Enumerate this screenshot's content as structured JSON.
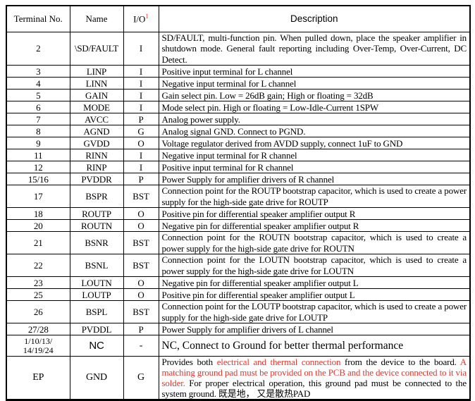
{
  "colors": {
    "red": "#e8352b",
    "ink": "#000000",
    "background": "#ffffff"
  },
  "table": {
    "header": {
      "terminal": "Terminal No.",
      "name": "Name",
      "io": "I/O",
      "io_sup": "1",
      "description": "Description"
    },
    "rows": [
      {
        "terminal": [
          "2"
        ],
        "name": "\\SD/FAULT",
        "io": "I",
        "tall": true,
        "justify": true,
        "desc": [
          {
            "t": "SD/FAULT, multi-function pin. When pulled down, place the speaker amplifier in shutdown mode. General fault reporting including Over-Temp, Over-Current, DC Detect.",
            "red": false
          }
        ]
      },
      {
        "terminal": [
          "3"
        ],
        "name": "LINP",
        "io": "I",
        "desc": [
          {
            "t": "Positive input terminal for L channel",
            "red": false
          }
        ]
      },
      {
        "terminal": [
          "4"
        ],
        "name": "LINN",
        "io": "I",
        "desc": [
          {
            "t": "Negative input terminal for L channel",
            "red": false
          }
        ]
      },
      {
        "terminal": [
          "5"
        ],
        "name": "GAIN",
        "io": "I",
        "desc": [
          {
            "t": "Gain select pin. Low = 26dB gain; High or floating = 32dB",
            "red": false
          }
        ]
      },
      {
        "terminal": [
          "6"
        ],
        "name": "MODE",
        "io": "I",
        "desc": [
          {
            "t": "Mode select pin. High or floating = Low-Idle-Current 1SPW",
            "red": false
          }
        ]
      },
      {
        "terminal": [
          "7"
        ],
        "name": "AVCC",
        "io": "P",
        "desc": [
          {
            "t": "Analog power supply.",
            "red": false
          }
        ]
      },
      {
        "terminal": [
          "8"
        ],
        "name": "AGND",
        "io": "G",
        "desc": [
          {
            "t": "Analog signal GND. Connect to PGND.",
            "red": false
          }
        ]
      },
      {
        "terminal": [
          "9"
        ],
        "name": "GVDD",
        "io": "O",
        "desc": [
          {
            "t": "Voltage regulator derived from AVDD supply, connect 1uF to GND",
            "red": false
          }
        ]
      },
      {
        "terminal": [
          "11"
        ],
        "name": "RINN",
        "io": "I",
        "desc": [
          {
            "t": "Negative input terminal for R channel",
            "red": false
          }
        ]
      },
      {
        "terminal": [
          "12"
        ],
        "name": "RINP",
        "io": "I",
        "desc": [
          {
            "t": "Positive input terminal for R channel",
            "red": false
          }
        ]
      },
      {
        "terminal": [
          "15/16"
        ],
        "name": "PVDDR",
        "io": "P",
        "desc": [
          {
            "t": "Power Supply for amplifier drivers of R channel",
            "red": false
          }
        ]
      },
      {
        "terminal": [
          "17"
        ],
        "name": "BSPR",
        "io": "BST",
        "tall": true,
        "justify": true,
        "desc": [
          {
            "t": "Connection point for the ROUTP bootstrap capacitor, which is used to create a power supply for the high-side gate drive for ROUTP",
            "red": false
          }
        ]
      },
      {
        "terminal": [
          "18"
        ],
        "name": "ROUTP",
        "io": "O",
        "desc": [
          {
            "t": "Positive pin for differential speaker amplifier output R",
            "red": false
          }
        ]
      },
      {
        "terminal": [
          "20"
        ],
        "name": "ROUTN",
        "io": "O",
        "desc": [
          {
            "t": "Negative pin for differential speaker amplifier output R",
            "red": false
          }
        ]
      },
      {
        "terminal": [
          "21"
        ],
        "name": "BSNR",
        "io": "BST",
        "tall": true,
        "justify": true,
        "desc": [
          {
            "t": "Connection point for the ROUTN bootstrap capacitor, which is used to create a power supply for the high-side gate drive for ROUTN",
            "red": false
          }
        ]
      },
      {
        "terminal": [
          "22"
        ],
        "name": "BSNL",
        "io": "BST",
        "tall": true,
        "justify": true,
        "desc": [
          {
            "t": "Connection point for the LOUTN bootstrap capacitor, which is used to create a power supply for the high-side gate drive for LOUTN",
            "red": false
          }
        ]
      },
      {
        "terminal": [
          "23"
        ],
        "name": "LOUTN",
        "io": "O",
        "desc": [
          {
            "t": "Negative pin for differential speaker amplifier output L",
            "red": false
          }
        ]
      },
      {
        "terminal": [
          "25"
        ],
        "name": "LOUTP",
        "io": "O",
        "desc": [
          {
            "t": "Positive pin for differential speaker amplifier output L",
            "red": false
          }
        ]
      },
      {
        "terminal": [
          "26"
        ],
        "name": "BSPL",
        "io": "BST",
        "tall": true,
        "justify": true,
        "desc": [
          {
            "t": "Connection point for the LOUTP bootstrap capacitor, which is used to create a power supply for the high-side gate drive for LOUTP",
            "red": false
          }
        ]
      },
      {
        "terminal": [
          "27/28"
        ],
        "name": "PVDDL",
        "io": "P",
        "desc": [
          {
            "t": "Power Supply for amplifier drivers of L channel",
            "red": false
          }
        ]
      },
      {
        "terminal": [
          "1/10/13/",
          "14/19/24"
        ],
        "name": "NC",
        "io": "-",
        "nc": true,
        "desc": [
          {
            "t": "NC, Connect to Ground for better thermal performance",
            "red": false
          }
        ]
      },
      {
        "terminal": [
          "EP"
        ],
        "name": "GND",
        "io": "G",
        "ep": true,
        "justify": true,
        "desc": [
          {
            "t": "Provides both ",
            "red": false
          },
          {
            "t": "electrical and thermal connection",
            "red": true
          },
          {
            "t": " from the device to the board. ",
            "red": false
          },
          {
            "t": "A matching ground pad must be provided on the PCB and the device connected to it via solder.",
            "red": true
          },
          {
            "t": " For proper electrical operation, this ground pad must be connected to the system ground.  既是地， 又是散热PAD",
            "red": false
          }
        ]
      }
    ]
  }
}
